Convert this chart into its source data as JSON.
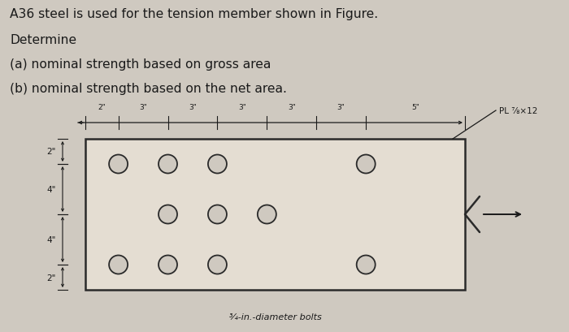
{
  "bg_color": "#cfc9c0",
  "plate_color": "#e4ddd2",
  "plate_border_color": "#2a2a2a",
  "text_color": "#1a1a1a",
  "title_lines": [
    "A36 steel is used for the tension member shown in Figure.",
    "Determine",
    "(a) nominal strength based on gross area",
    "(b) nominal strength based on the net area."
  ],
  "title_fontsize": 11.2,
  "hole_edge_color": "#2a2a2a",
  "hole_fill_color": "#cfc9c0",
  "dim_color": "#1a1a1a",
  "horiz_dims": [
    "2\"",
    "3\"",
    "3\"",
    "3\"",
    "3\"",
    "3\"",
    "5\""
  ],
  "vert_dim_labels": [
    "2\"",
    "4\"",
    "4\"",
    "2\""
  ],
  "label_bottom_note": "¾-in.-diameter bolts",
  "pl_label": "PL ⅞×12"
}
